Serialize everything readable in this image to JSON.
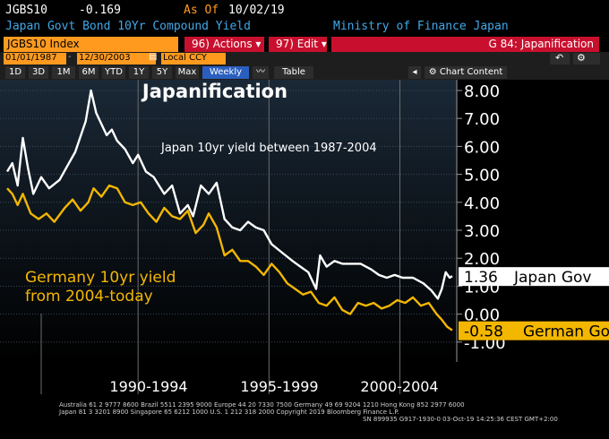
{
  "header": {
    "ticker": "JGBS10",
    "change": "-0.169",
    "asof_label": "As Of",
    "asof_date": "10/02/19",
    "description": "Japan Govt Bond 10Yr Compound Yield",
    "source": "Ministry of Finance Japan"
  },
  "toolbar": {
    "index_label": "JGBS10 Index",
    "actions_label": "96) Actions ▾",
    "edit_label": "97) Edit ▾",
    "page_label": "G 84: Japanification"
  },
  "controls": {
    "start_date": "01/01/1987",
    "end_date": "12/30/2003",
    "currency": "Local CCY",
    "chart_content": "Chart Content",
    "undo": "↶",
    "settings": "⚙"
  },
  "periods": [
    "1D",
    "3D",
    "1M",
    "6M",
    "YTD",
    "1Y",
    "5Y",
    "Max"
  ],
  "frequency": "Weekly",
  "view_table": "Table",
  "colors": {
    "japan": "#ffffff",
    "germany": "#f3b700",
    "header_orange": "#ff9a1f",
    "header_blue": "#41a8e8",
    "toolbar_red": "#c8102e",
    "highlight": "#2a5fbf"
  },
  "chart_data": {
    "type": "line",
    "title": "Japanification",
    "x_ticks": [
      "1990-1994",
      "1995-1999",
      "2000-2004"
    ],
    "y_ticks": [
      "8.00",
      "7.00",
      "6.00",
      "5.00",
      "4.00",
      "3.00",
      "2.00",
      "1.00",
      "0.00",
      "-1.00"
    ],
    "ylim": [
      -1.5,
      8.3
    ],
    "grid": true,
    "annotations": {
      "japan": "Japan 10yr yield between 1987-2004",
      "germany_line1": "Germany 10yr yield",
      "germany_line2": "from 2004-today"
    },
    "series": [
      {
        "name": "Japan Gov",
        "last_label": "1.36",
        "x": [
          1987.0,
          1987.2,
          1987.4,
          1987.6,
          1987.8,
          1988.0,
          1988.3,
          1988.6,
          1989.0,
          1989.3,
          1989.6,
          1990.0,
          1990.2,
          1990.4,
          1990.6,
          1990.8,
          1991.0,
          1991.2,
          1991.5,
          1991.8,
          1992.0,
          1992.3,
          1992.6,
          1993.0,
          1993.3,
          1993.6,
          1993.9,
          1994.1,
          1994.4,
          1994.7,
          1995.0,
          1995.3,
          1995.6,
          1995.9,
          1996.2,
          1996.5,
          1996.8,
          1997.1,
          1997.5,
          1997.9,
          1998.2,
          1998.5,
          1998.8,
          1998.95,
          1999.2,
          1999.5,
          1999.8,
          2000.1,
          2000.5,
          2000.9,
          2001.2,
          2001.5,
          2001.8,
          2002.1,
          2002.5,
          2002.9,
          2003.2,
          2003.45,
          2003.6,
          2003.75,
          2003.9,
          2004.0
        ],
        "y": [
          5.1,
          5.4,
          4.6,
          6.3,
          5.2,
          4.3,
          4.9,
          4.5,
          4.8,
          5.3,
          5.8,
          6.9,
          8.0,
          7.2,
          6.8,
          6.4,
          6.6,
          6.2,
          5.9,
          5.4,
          5.7,
          5.1,
          4.9,
          4.3,
          4.6,
          3.6,
          3.9,
          3.5,
          4.6,
          4.3,
          4.7,
          3.4,
          3.1,
          3.0,
          3.3,
          3.1,
          3.0,
          2.5,
          2.2,
          1.9,
          1.7,
          1.5,
          0.9,
          2.1,
          1.7,
          1.9,
          1.8,
          1.8,
          1.8,
          1.6,
          1.4,
          1.3,
          1.4,
          1.3,
          1.3,
          1.1,
          0.85,
          0.55,
          0.9,
          1.5,
          1.3,
          1.36
        ]
      },
      {
        "name": "German Go",
        "last_label": "-0.58",
        "x": [
          1987.0,
          1987.2,
          1987.4,
          1987.6,
          1987.9,
          1988.2,
          1988.5,
          1988.8,
          1989.2,
          1989.5,
          1989.8,
          1990.1,
          1990.3,
          1990.6,
          1990.9,
          1991.2,
          1991.5,
          1991.8,
          1992.1,
          1992.4,
          1992.7,
          1993.0,
          1993.3,
          1993.6,
          1993.9,
          1994.2,
          1994.5,
          1994.7,
          1995.0,
          1995.3,
          1995.6,
          1995.9,
          1996.2,
          1996.5,
          1996.8,
          1997.1,
          1997.4,
          1997.7,
          1998.0,
          1998.3,
          1998.6,
          1998.9,
          1999.2,
          1999.5,
          1999.8,
          2000.1,
          2000.4,
          2000.7,
          2001.0,
          2001.3,
          2001.6,
          2001.9,
          2002.2,
          2002.5,
          2002.8,
          2003.1,
          2003.4,
          2003.6,
          2003.8,
          2004.0
        ],
        "y": [
          4.5,
          4.3,
          3.9,
          4.3,
          3.6,
          3.4,
          3.6,
          3.3,
          3.8,
          4.1,
          3.7,
          4.0,
          4.5,
          4.2,
          4.6,
          4.5,
          4.0,
          3.9,
          4.0,
          3.6,
          3.3,
          3.8,
          3.5,
          3.4,
          3.7,
          2.9,
          3.2,
          3.6,
          3.1,
          2.1,
          2.3,
          1.9,
          1.9,
          1.7,
          1.4,
          1.8,
          1.5,
          1.1,
          0.9,
          0.7,
          0.8,
          0.4,
          0.3,
          0.6,
          0.15,
          0.0,
          0.4,
          0.3,
          0.4,
          0.2,
          0.3,
          0.5,
          0.4,
          0.6,
          0.3,
          0.4,
          0.0,
          -0.2,
          -0.45,
          -0.58
        ]
      }
    ]
  },
  "footer": {
    "line1": "Australia 61 2 9777 8600  Brazil 5511 2395 9000  Europe 44 20 7330 7500  Germany 49 69 9204 1210  Hong Kong 852 2977 6000",
    "line2": "Japan 81 3 3201 8900         Singapore 65 6212 1000         U.S. 1 212 318 2000                    Copyright 2019 Bloomberg Finance L.P.",
    "line3": "SN 899935 G917-1930-0 03-Oct-19 14:25:36 CEST  GMT+2:00"
  }
}
